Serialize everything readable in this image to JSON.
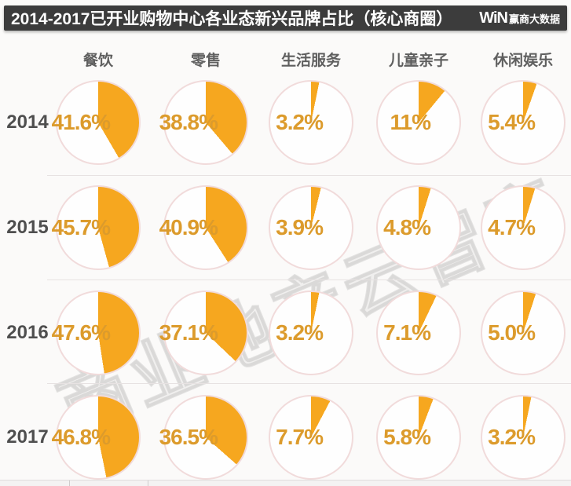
{
  "header": {
    "title": "2014-2017已开业购物中心各业态新兴品牌占比（核心商圈）",
    "logo": {
      "mark": "WiN",
      "name": "赢商大数据"
    }
  },
  "watermark_text": "商业地产云智库",
  "colors": {
    "title_bar_bg": "#3c3c3c",
    "pie_fill": "#f6a71f",
    "percent_text": "#dc9b2c",
    "ring_stroke": "#f1dbdb"
  },
  "chart_data": {
    "type": "pie",
    "title": "2014-2017已开业购物中心各业态新兴品牌占比（核心商圈）",
    "description": "Grid of pie charts: share of new emerging brands by business category in opened shopping malls (core business districts), 2014-2017",
    "columns": [
      "餐饮",
      "零售",
      "生活服务",
      "儿童亲子",
      "休闲娱乐"
    ],
    "rows": [
      "2014",
      "2015",
      "2016",
      "2017"
    ],
    "unit": "%",
    "direction": "clockwise",
    "start_angle": "12-o'clock",
    "series": [
      {
        "year": "2014",
        "values": [
          41.6,
          38.8,
          3.2,
          11,
          5.4
        ],
        "labels": [
          "41.6%",
          "38.8%",
          "3.2%",
          "11%",
          "5.4%"
        ]
      },
      {
        "year": "2015",
        "values": [
          45.7,
          40.9,
          3.9,
          4.8,
          4.7
        ],
        "labels": [
          "45.7%",
          "40.9%",
          "3.9%",
          "4.8%",
          "4.7%"
        ]
      },
      {
        "year": "2016",
        "values": [
          47.6,
          37.1,
          3.2,
          7.1,
          5.0
        ],
        "labels": [
          "47.6%",
          "37.1%",
          "3.2%",
          "7.1%",
          "5.0%"
        ]
      },
      {
        "year": "2017",
        "values": [
          46.8,
          36.5,
          7.7,
          5.8,
          3.2
        ],
        "labels": [
          "46.8%",
          "36.5%",
          "7.7%",
          "5.8%",
          "3.2%"
        ]
      }
    ]
  }
}
